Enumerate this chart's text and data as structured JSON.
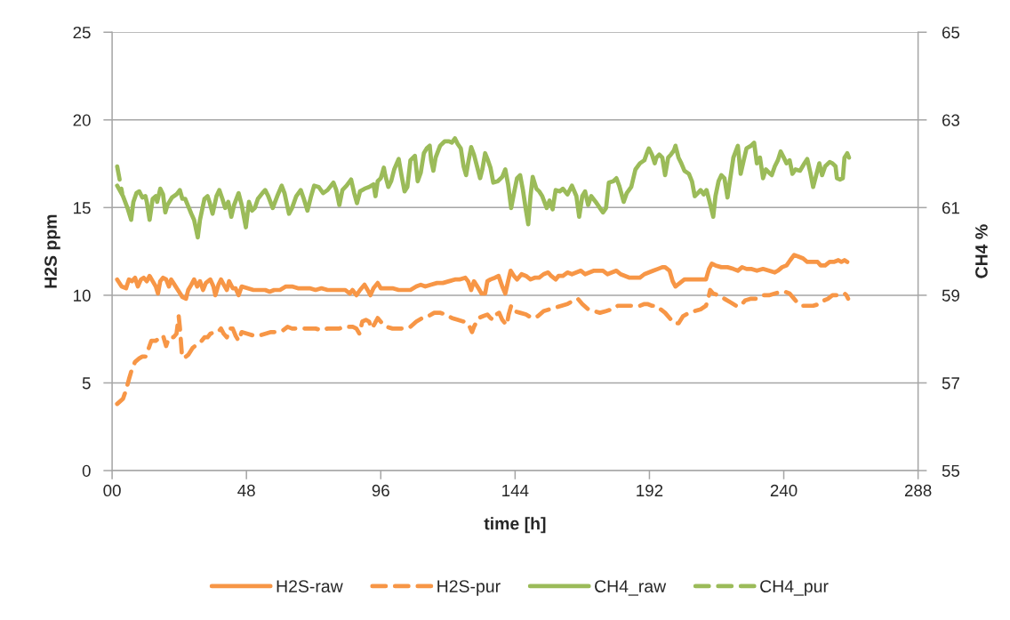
{
  "chart_data": {
    "type": "line",
    "xlabel": "time [h]",
    "ylabel": "H2S ppm",
    "y2label": "CH4 %",
    "xlim": [
      0,
      288
    ],
    "xticks": [
      {
        "value": 0,
        "label": "00"
      },
      48,
      96,
      144,
      192,
      240,
      288
    ],
    "ylim": [
      0,
      25
    ],
    "yticks": [
      0,
      5,
      10,
      15,
      20,
      25
    ],
    "y2lim": [
      55,
      65
    ],
    "y2ticks": [
      55,
      57,
      59,
      61,
      63,
      65
    ],
    "grid": "y",
    "legend": "bottom",
    "series": [
      {
        "name": "H2S-raw",
        "color": "#f79646",
        "line_style": "solid",
        "x": [
          1.8,
          3.4,
          5.0,
          6.0,
          7.1,
          8.2,
          9.2,
          10.3,
          11.3,
          12.4,
          13.4,
          14.5,
          15.6,
          16.4,
          17.2,
          18.2,
          19.3,
          20.3,
          21.1,
          21.9,
          23.5,
          25.1,
          26.4,
          27.2,
          28.3,
          29.3,
          30.4,
          31.4,
          32.5,
          33.5,
          35.1,
          36.2,
          36.9,
          38.0,
          38.9,
          39.9,
          41.0,
          41.8,
          43.1,
          44.1,
          45.2,
          46.3,
          48.4,
          50.5,
          52.6,
          54.7,
          56.3,
          57.9,
          60.0,
          62.1,
          64.3,
          66.4,
          68.5,
          70.6,
          72.7,
          74.8,
          77.0,
          79.1,
          81.2,
          83.3,
          84.9,
          85.9,
          87.3,
          88.6,
          90.2,
          91.3,
          92.3,
          93.4,
          94.9,
          96.0,
          98.1,
          100.2,
          102.4,
          104.5,
          106.6,
          108.7,
          110.3,
          111.9,
          114.0,
          116.1,
          118.2,
          120.4,
          122.5,
          124.1,
          126.2,
          127.2,
          128.3,
          129.3,
          130.9,
          132.0,
          133.3,
          134.1,
          135.2,
          136.8,
          138.1,
          139.4,
          140.5,
          141.5,
          142.4,
          143.6,
          144.7,
          146.3,
          147.9,
          149.5,
          151.0,
          152.6,
          154.2,
          155.8,
          156.9,
          158.5,
          159.5,
          161.1,
          162.7,
          164.3,
          165.9,
          167.5,
          169.0,
          170.6,
          172.2,
          173.8,
          175.4,
          177.0,
          178.6,
          180.2,
          181.7,
          183.3,
          184.9,
          187.0,
          188.6,
          190.2,
          191.8,
          193.4,
          195.0,
          196.6,
          197.6,
          199.2,
          200.3,
          201.3,
          202.9,
          204.5,
          206.1,
          208.2,
          210.3,
          212.2,
          213.3,
          214.3,
          215.6,
          217.7,
          219.9,
          222.0,
          223.6,
          225.1,
          226.7,
          228.3,
          230.4,
          232.6,
          234.7,
          236.8,
          237.9,
          239.4,
          241.0,
          242.3,
          243.7,
          245.3,
          246.9,
          248.4,
          250.5,
          252.1,
          253.2,
          254.8,
          256.4,
          257.9,
          259.5,
          260.6,
          261.7,
          262.7
        ],
        "values": [
          10.9,
          10.5,
          10.4,
          10.9,
          10.8,
          11.0,
          10.5,
          10.9,
          11.0,
          10.8,
          11.1,
          10.8,
          10.5,
          10.1,
          10.8,
          11.0,
          10.9,
          10.5,
          10.9,
          10.7,
          10.3,
          9.9,
          9.8,
          10.3,
          10.6,
          10.9,
          10.5,
          10.8,
          10.3,
          10.7,
          10.9,
          10.5,
          10.0,
          10.6,
          10.9,
          10.6,
          10.3,
          10.8,
          10.4,
          10.4,
          10.0,
          10.5,
          10.4,
          10.3,
          10.3,
          10.3,
          10.2,
          10.3,
          10.3,
          10.5,
          10.5,
          10.4,
          10.4,
          10.4,
          10.3,
          10.4,
          10.3,
          10.3,
          10.3,
          10.3,
          10.1,
          10.3,
          10.0,
          10.3,
          10.6,
          10.3,
          10.0,
          10.4,
          10.7,
          10.4,
          10.4,
          10.4,
          10.3,
          10.3,
          10.3,
          10.5,
          10.6,
          10.5,
          10.6,
          10.7,
          10.7,
          10.8,
          10.9,
          10.9,
          11.0,
          10.8,
          10.3,
          10.8,
          10.4,
          10.1,
          10.1,
          10.8,
          10.9,
          11.0,
          11.1,
          10.5,
          10.1,
          10.8,
          11.4,
          11.1,
          10.9,
          11.2,
          11.1,
          10.9,
          11.0,
          11.0,
          11.2,
          11.3,
          11.1,
          10.9,
          11.1,
          11.1,
          11.3,
          11.2,
          11.3,
          11.4,
          11.2,
          11.3,
          11.4,
          11.4,
          11.4,
          11.2,
          11.3,
          11.4,
          11.2,
          11.1,
          11.0,
          11.0,
          11.0,
          11.2,
          11.3,
          11.4,
          11.5,
          11.6,
          11.6,
          11.4,
          10.8,
          10.5,
          10.7,
          10.9,
          10.9,
          10.9,
          10.9,
          10.9,
          11.5,
          11.8,
          11.7,
          11.6,
          11.6,
          11.5,
          11.4,
          11.6,
          11.5,
          11.5,
          11.4,
          11.5,
          11.4,
          11.3,
          11.4,
          11.6,
          11.7,
          12.0,
          12.3,
          12.2,
          12.1,
          11.9,
          11.9,
          11.9,
          11.7,
          11.7,
          11.9,
          11.9,
          12.0,
          11.9,
          12.0,
          11.9
        ]
      },
      {
        "name": "H2S-pur",
        "color": "#f79646",
        "line_style": "dashed",
        "x": [
          1.8,
          3.9,
          5.0,
          6.0,
          7.1,
          8.2,
          9.7,
          10.8,
          11.9,
          12.9,
          14.0,
          15.6,
          17.2,
          18.2,
          19.3,
          20.3,
          21.9,
          23.0,
          23.8,
          24.2,
          24.9,
          25.6,
          27.2,
          28.8,
          30.4,
          32.0,
          33.0,
          34.1,
          35.1,
          36.5,
          37.8,
          38.9,
          39.9,
          41.0,
          42.0,
          43.1,
          44.1,
          45.2,
          46.3,
          48.4,
          50.5,
          52.6,
          54.7,
          56.8,
          59.0,
          61.1,
          62.7,
          64.3,
          66.4,
          68.5,
          70.6,
          72.7,
          74.8,
          77.0,
          79.1,
          81.2,
          82.8,
          84.4,
          86.0,
          87.3,
          88.4,
          89.4,
          90.7,
          91.8,
          92.8,
          93.9,
          94.9,
          96.5,
          98.1,
          100.2,
          102.4,
          104.5,
          106.6,
          108.7,
          110.8,
          112.9,
          115.1,
          117.2,
          119.3,
          121.4,
          123.5,
          125.6,
          127.2,
          128.6,
          129.3,
          130.9,
          132.5,
          134.1,
          135.2,
          136.2,
          137.3,
          138.3,
          139.4,
          141.0,
          141.7,
          142.6,
          143.6,
          145.8,
          147.9,
          150.0,
          152.1,
          154.2,
          156.3,
          158.5,
          160.6,
          162.7,
          164.8,
          166.4,
          168.0,
          170.1,
          172.2,
          174.3,
          176.5,
          178.6,
          180.7,
          182.8,
          184.9,
          187.0,
          188.6,
          190.2,
          191.3,
          192.9,
          194.5,
          196.0,
          197.6,
          199.2,
          200.8,
          202.4,
          204.0,
          206.1,
          208.2,
          210.3,
          212.2,
          213.0,
          213.7,
          214.8,
          216.7,
          218.8,
          220.9,
          223.0,
          224.6,
          226.2,
          228.3,
          230.4,
          232.6,
          234.7,
          236.8,
          238.9,
          240.5,
          242.1,
          243.7,
          245.3,
          246.8,
          248.4,
          250.5,
          252.7,
          254.3,
          255.8,
          257.4,
          259.0,
          260.6,
          261.7,
          262.4,
          263.0
        ],
        "values": [
          3.8,
          4.1,
          4.6,
          5.2,
          5.8,
          6.2,
          6.4,
          6.5,
          6.5,
          6.9,
          7.4,
          7.4,
          7.6,
          7.7,
          7.1,
          7.6,
          7.6,
          7.8,
          8.8,
          8.2,
          6.7,
          6.4,
          6.6,
          7.0,
          7.2,
          7.4,
          7.6,
          7.6,
          7.8,
          7.9,
          7.9,
          8.1,
          7.8,
          7.6,
          8.1,
          8.1,
          7.7,
          7.4,
          7.9,
          7.8,
          7.7,
          7.7,
          7.8,
          7.9,
          7.9,
          8.0,
          8.2,
          8.1,
          8.1,
          8.1,
          8.1,
          8.1,
          8.0,
          8.1,
          8.1,
          8.1,
          8.2,
          8.2,
          8.2,
          8.1,
          7.8,
          8.5,
          8.6,
          8.5,
          8.1,
          8.4,
          8.7,
          8.4,
          8.2,
          8.1,
          8.1,
          8.1,
          8.2,
          8.5,
          8.7,
          8.8,
          9.0,
          9.0,
          8.9,
          8.7,
          8.6,
          8.5,
          8.4,
          7.9,
          8.2,
          8.7,
          8.8,
          8.9,
          8.7,
          8.6,
          8.9,
          9.0,
          8.6,
          8.3,
          8.9,
          9.4,
          9.1,
          9.0,
          8.9,
          8.7,
          8.8,
          9.1,
          9.2,
          9.3,
          9.4,
          9.5,
          9.7,
          9.8,
          9.5,
          9.2,
          9.1,
          9.0,
          9.1,
          9.2,
          9.4,
          9.4,
          9.4,
          9.4,
          9.4,
          9.5,
          9.5,
          9.4,
          9.4,
          9.2,
          9.0,
          8.7,
          8.4,
          8.4,
          8.8,
          9.0,
          9.1,
          9.2,
          9.4,
          9.8,
          10.3,
          10.1,
          10.0,
          9.8,
          9.6,
          9.4,
          9.4,
          9.7,
          9.8,
          9.8,
          10.0,
          10.0,
          10.1,
          10.2,
          10.2,
          10.1,
          9.8,
          9.5,
          9.4,
          9.4,
          9.4,
          9.5,
          9.7,
          9.8,
          10.0,
          10.0,
          10.1,
          10.1,
          10.0,
          9.8
        ]
      },
      {
        "name": "CH4_raw",
        "color": "#9bbb59",
        "line_style": "solid",
        "axis": "y2",
        "x": [
          1.8,
          3.9,
          5.5,
          6.8,
          7.6,
          8.7,
          9.7,
          10.8,
          11.9,
          12.4,
          13.4,
          14.5,
          15.6,
          16.1,
          17.2,
          18.2,
          19.0,
          19.8,
          21.4,
          23.0,
          24.2,
          25.1,
          26.1,
          27.2,
          28.3,
          29.3,
          30.6,
          31.4,
          33.0,
          34.1,
          34.8,
          35.9,
          37.3,
          38.3,
          39.4,
          40.4,
          41.5,
          42.6,
          43.6,
          45.2,
          46.3,
          47.8,
          48.9,
          50.0,
          51.0,
          52.1,
          53.7,
          54.7,
          55.8,
          57.4,
          59.0,
          60.6,
          61.6,
          63.2,
          64.3,
          65.8,
          67.4,
          68.5,
          69.8,
          71.1,
          72.2,
          73.8,
          75.4,
          77.0,
          79.1,
          80.1,
          81.2,
          82.3,
          83.8,
          85.4,
          86.5,
          87.5,
          88.6,
          90.2,
          91.8,
          93.4,
          94.1,
          94.9,
          96.0,
          97.1,
          97.6,
          98.7,
          99.7,
          100.8,
          102.4,
          103.4,
          104.5,
          105.5,
          106.6,
          108.2,
          109.2,
          110.3,
          111.4,
          112.4,
          113.5,
          114.0,
          114.8,
          115.6,
          117.2,
          118.8,
          120.4,
          121.4,
          122.5,
          123.5,
          124.6,
          125.6,
          126.5,
          127.2,
          128.3,
          129.3,
          130.4,
          131.5,
          132.3,
          133.3,
          134.3,
          135.2,
          136.2,
          137.8,
          139.4,
          140.5,
          141.5,
          142.6,
          143.6,
          144.7,
          145.8,
          146.8,
          147.9,
          148.7,
          149.5,
          150.3,
          151.6,
          152.6,
          153.7,
          155.3,
          156.3,
          157.4,
          158.5,
          160.0,
          161.1,
          162.7,
          164.3,
          165.9,
          166.9,
          168.0,
          169.0,
          170.1,
          171.2,
          172.8,
          174.3,
          175.4,
          176.5,
          177.5,
          179.1,
          180.2,
          181.2,
          182.8,
          183.9,
          185.5,
          187.0,
          188.6,
          190.2,
          191.3,
          191.8,
          192.9,
          193.9,
          194.5,
          195.5,
          196.6,
          197.6,
          198.7,
          199.7,
          200.8,
          201.3,
          202.4,
          203.4,
          204.5,
          206.1,
          207.2,
          208.2,
          209.3,
          210.3,
          211.4,
          212.4,
          213.5,
          214.8,
          215.6,
          216.7,
          217.7,
          218.8,
          219.9,
          220.9,
          222.0,
          223.6,
          224.6,
          225.7,
          226.7,
          228.3,
          229.4,
          230.4,
          231.5,
          232.6,
          233.6,
          234.7,
          235.7,
          236.8,
          237.9,
          238.9,
          240.0,
          241.0,
          242.1,
          243.1,
          244.2,
          245.8,
          247.4,
          248.4,
          249.5,
          250.5,
          251.6,
          252.7,
          253.7,
          254.8,
          256.4,
          257.4,
          258.5,
          259.0,
          260.1,
          261.1,
          261.7,
          262.7,
          263.3
        ],
        "values": [
          61.5,
          61.26,
          60.99,
          60.72,
          61.13,
          61.33,
          61.37,
          61.23,
          61.26,
          61.13,
          60.72,
          61.2,
          61.26,
          61.13,
          61.43,
          61.3,
          60.89,
          61.06,
          61.23,
          61.3,
          61.4,
          61.2,
          61.2,
          61.03,
          60.86,
          60.72,
          60.32,
          60.72,
          61.2,
          61.26,
          61.13,
          60.86,
          61.26,
          61.4,
          61.2,
          60.99,
          61.13,
          60.79,
          61.06,
          61.33,
          61.06,
          60.55,
          61.13,
          60.93,
          60.99,
          61.2,
          61.33,
          61.4,
          61.26,
          60.99,
          61.26,
          61.5,
          61.33,
          60.86,
          60.99,
          61.26,
          61.4,
          61.2,
          60.93,
          61.26,
          61.5,
          61.47,
          61.33,
          61.4,
          61.57,
          61.4,
          61.06,
          61.4,
          61.5,
          61.64,
          61.33,
          61.1,
          61.37,
          61.43,
          61.47,
          61.53,
          61.26,
          61.6,
          61.67,
          61.91,
          61.74,
          61.47,
          61.6,
          61.87,
          62.11,
          61.74,
          61.37,
          61.47,
          62.08,
          62.18,
          61.6,
          61.8,
          62.24,
          62.35,
          62.41,
          62.08,
          61.84,
          62.14,
          62.41,
          62.51,
          62.51,
          62.48,
          62.58,
          62.45,
          62.35,
          61.94,
          61.74,
          62.01,
          62.38,
          62.21,
          61.94,
          61.67,
          61.87,
          62.24,
          62.08,
          61.91,
          61.57,
          61.6,
          61.7,
          61.87,
          61.53,
          60.99,
          61.33,
          61.67,
          61.74,
          61.4,
          60.93,
          60.62,
          61.26,
          61.7,
          61.43,
          61.37,
          61.26,
          60.99,
          61.16,
          60.96,
          61.4,
          61.37,
          61.43,
          61.3,
          61.5,
          61.26,
          60.79,
          61.26,
          61.37,
          61.06,
          61.26,
          61.13,
          60.99,
          60.89,
          60.99,
          61.57,
          61.6,
          61.67,
          61.5,
          61.13,
          61.33,
          61.47,
          61.87,
          62.01,
          62.08,
          62.28,
          62.35,
          62.21,
          62.01,
          62.14,
          62.21,
          62.14,
          61.74,
          62.14,
          62.21,
          62.31,
          62.41,
          62.14,
          62.01,
          61.84,
          61.77,
          61.6,
          61.26,
          61.33,
          61.4,
          61.3,
          61.4,
          61.13,
          60.79,
          61.26,
          61.6,
          61.74,
          61.67,
          61.23,
          61.67,
          62.14,
          62.41,
          61.77,
          62.08,
          62.35,
          62.41,
          62.48,
          62.01,
          62.14,
          61.67,
          61.87,
          61.8,
          61.74,
          61.94,
          62.08,
          62.28,
          62.14,
          62.01,
          62.08,
          61.77,
          61.87,
          61.84,
          62.01,
          62.11,
          61.8,
          61.47,
          61.74,
          62.01,
          61.74,
          61.94,
          62.04,
          62.01,
          61.94,
          61.67,
          61.64,
          61.67,
          62.14,
          62.24,
          62.14
        ]
      },
      {
        "name": "CH4_pur",
        "color": "#9bbb59",
        "line_style": "dashed",
        "axis": "y2",
        "x": [
          1.8,
          2.6,
          3.6
        ],
        "values": [
          61.94,
          61.67,
          61.33
        ]
      }
    ]
  }
}
